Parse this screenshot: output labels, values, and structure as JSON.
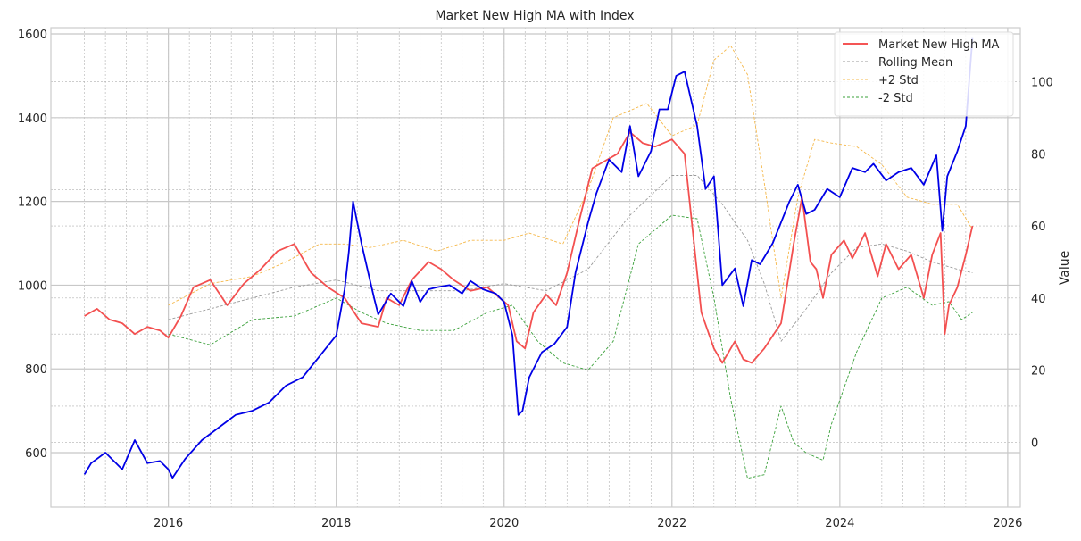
{
  "chart_data": {
    "type": "line",
    "title": "Market New High MA with Index",
    "xlabel": "",
    "ylabel_left": "",
    "ylabel_right": "Value",
    "x_ticks": [
      "2016",
      "2018",
      "2020",
      "2022",
      "2024",
      "2026"
    ],
    "x_range": [
      2014.6,
      2026.15
    ],
    "y_left_ticks": [
      "600",
      "800",
      "1000",
      "1200",
      "1400",
      "1600"
    ],
    "y_left_range": [
      470,
      1615
    ],
    "y_right_ticks": [
      "0",
      "20",
      "40",
      "60",
      "80",
      "100"
    ],
    "y_right_range": [
      -18,
      115
    ],
    "grid": true,
    "legend_position": "top-right",
    "colors": {
      "index": "#0000e6",
      "ma": "#f23d3d",
      "rolling": "#9a9a9a",
      "upper": "#f5b84a",
      "lower": "#3aa03a",
      "grid": "#b0b0b0",
      "frame": "#cccccc"
    },
    "series": [
      {
        "name": "",
        "key": "index",
        "axis": "left",
        "x": [
          2015.0,
          2015.08,
          2015.25,
          2015.45,
          2015.6,
          2015.75,
          2015.9,
          2016.0,
          2016.05,
          2016.2,
          2016.4,
          2016.6,
          2016.8,
          2017.0,
          2017.2,
          2017.4,
          2017.6,
          2017.8,
          2018.0,
          2018.1,
          2018.15,
          2018.2,
          2018.3,
          2018.45,
          2018.5,
          2018.65,
          2018.8,
          2018.9,
          2019.0,
          2019.1,
          2019.2,
          2019.35,
          2019.5,
          2019.6,
          2019.75,
          2019.9,
          2020.0,
          2020.1,
          2020.17,
          2020.22,
          2020.3,
          2020.45,
          2020.6,
          2020.75,
          2020.85,
          2021.0,
          2021.1,
          2021.25,
          2021.4,
          2021.5,
          2021.6,
          2021.75,
          2021.85,
          2021.95,
          2022.05,
          2022.15,
          2022.3,
          2022.4,
          2022.5,
          2022.6,
          2022.75,
          2022.85,
          2022.95,
          2023.05,
          2023.2,
          2023.4,
          2023.5,
          2023.6,
          2023.7,
          2023.85,
          2024.0,
          2024.15,
          2024.3,
          2024.4,
          2024.55,
          2024.7,
          2024.85,
          2025.0,
          2025.15,
          2025.22,
          2025.28,
          2025.4,
          2025.5,
          2025.58
        ],
        "values": [
          548,
          575,
          600,
          560,
          630,
          575,
          580,
          560,
          540,
          585,
          630,
          660,
          690,
          700,
          720,
          760,
          780,
          830,
          880,
          990,
          1080,
          1200,
          1100,
          970,
          930,
          980,
          950,
          1010,
          960,
          990,
          995,
          1000,
          980,
          1010,
          990,
          980,
          960,
          880,
          690,
          700,
          780,
          840,
          860,
          900,
          1030,
          1150,
          1220,
          1300,
          1270,
          1380,
          1260,
          1320,
          1420,
          1420,
          1500,
          1510,
          1380,
          1230,
          1260,
          1000,
          1040,
          950,
          1060,
          1050,
          1100,
          1200,
          1240,
          1170,
          1180,
          1230,
          1210,
          1280,
          1270,
          1290,
          1250,
          1270,
          1280,
          1240,
          1310,
          1130,
          1260,
          1320,
          1380,
          1590
        ]
      },
      {
        "name": "Market New High MA",
        "key": "ma",
        "axis": "right",
        "x": [
          2015.0,
          2015.15,
          2015.3,
          2015.45,
          2015.6,
          2015.75,
          2015.9,
          2016.0,
          2016.15,
          2016.3,
          2016.5,
          2016.7,
          2016.9,
          2017.1,
          2017.3,
          2017.5,
          2017.7,
          2017.9,
          2018.1,
          2018.3,
          2018.5,
          2018.6,
          2018.75,
          2018.9,
          2019.1,
          2019.25,
          2019.4,
          2019.6,
          2019.8,
          2019.95,
          2020.05,
          2020.15,
          2020.25,
          2020.35,
          2020.5,
          2020.62,
          2020.75,
          2020.9,
          2021.05,
          2021.2,
          2021.35,
          2021.5,
          2021.65,
          2021.8,
          2022.0,
          2022.15,
          2022.25,
          2022.35,
          2022.5,
          2022.6,
          2022.75,
          2022.85,
          2022.95,
          2023.1,
          2023.3,
          2023.45,
          2023.55,
          2023.65,
          2023.72,
          2023.8,
          2023.9,
          2024.05,
          2024.15,
          2024.3,
          2024.45,
          2024.55,
          2024.7,
          2024.85,
          2025.0,
          2025.1,
          2025.2,
          2025.25,
          2025.3,
          2025.4,
          2025.5,
          2025.58
        ],
        "values": [
          35,
          37,
          34,
          33,
          30,
          32,
          31,
          29,
          35,
          43,
          45,
          38,
          44,
          48,
          53,
          55,
          47,
          43,
          40,
          33,
          32,
          40,
          38,
          45,
          50,
          48,
          45,
          42,
          43,
          40,
          38,
          28,
          26,
          36,
          41,
          38,
          47,
          62,
          76,
          78,
          80,
          86,
          83,
          82,
          84,
          80,
          58,
          36,
          26,
          22,
          28,
          23,
          22,
          26,
          33,
          55,
          68,
          50,
          48,
          40,
          52,
          56,
          51,
          58,
          46,
          55,
          48,
          52,
          40,
          52,
          58,
          30,
          38,
          43,
          52,
          60
        ]
      },
      {
        "name": "Rolling Mean",
        "key": "rolling",
        "axis": "right",
        "x": [
          2016.0,
          2016.5,
          2017.0,
          2017.5,
          2018.0,
          2018.5,
          2019.0,
          2019.5,
          2020.0,
          2020.5,
          2021.0,
          2021.5,
          2022.0,
          2022.3,
          2022.6,
          2022.9,
          2023.1,
          2023.3,
          2023.6,
          2023.9,
          2024.2,
          2024.5,
          2024.8,
          2025.1,
          2025.4,
          2025.58
        ],
        "values": [
          34,
          37,
          40,
          43,
          45,
          42,
          42,
          42,
          44,
          42,
          48,
          63,
          74,
          74,
          66,
          56,
          44,
          28,
          37,
          47,
          54,
          55,
          53,
          50,
          48,
          47
        ]
      },
      {
        "name": "+2 Std",
        "key": "upper",
        "axis": "right",
        "x": [
          2016.0,
          2016.5,
          2017.0,
          2017.4,
          2017.8,
          2018.1,
          2018.4,
          2018.8,
          2019.2,
          2019.6,
          2020.0,
          2020.3,
          2020.7,
          2021.0,
          2021.3,
          2021.7,
          2022.0,
          2022.3,
          2022.5,
          2022.7,
          2022.9,
          2023.1,
          2023.3,
          2023.5,
          2023.7,
          2023.9,
          2024.2,
          2024.5,
          2024.8,
          2025.1,
          2025.4,
          2025.58
        ],
        "values": [
          38,
          44,
          46,
          50,
          55,
          55,
          54,
          56,
          53,
          56,
          56,
          58,
          55,
          70,
          90,
          94,
          85,
          88,
          106,
          110,
          102,
          72,
          40,
          68,
          84,
          83,
          82,
          77,
          68,
          66,
          66,
          59
        ]
      },
      {
        "name": "-2 Std",
        "key": "lower",
        "axis": "right",
        "x": [
          2016.0,
          2016.5,
          2017.0,
          2017.5,
          2018.0,
          2018.3,
          2018.6,
          2019.0,
          2019.4,
          2019.8,
          2020.1,
          2020.4,
          2020.7,
          2021.0,
          2021.3,
          2021.6,
          2022.0,
          2022.3,
          2022.5,
          2022.7,
          2022.9,
          2023.1,
          2023.3,
          2023.45,
          2023.6,
          2023.8,
          2023.9,
          2024.2,
          2024.5,
          2024.8,
          2025.1,
          2025.3,
          2025.45,
          2025.58
        ],
        "values": [
          30,
          27,
          34,
          35,
          40,
          36,
          33,
          31,
          31,
          36,
          38,
          28,
          22,
          20,
          28,
          55,
          63,
          62,
          40,
          12,
          -10,
          -9,
          10,
          0,
          -3,
          -5,
          5,
          25,
          40,
          43,
          38,
          39,
          34,
          36
        ]
      }
    ]
  },
  "legend": {
    "items": [
      "Market New High MA",
      "Rolling Mean",
      "+2 Std",
      "-2 Std"
    ]
  }
}
